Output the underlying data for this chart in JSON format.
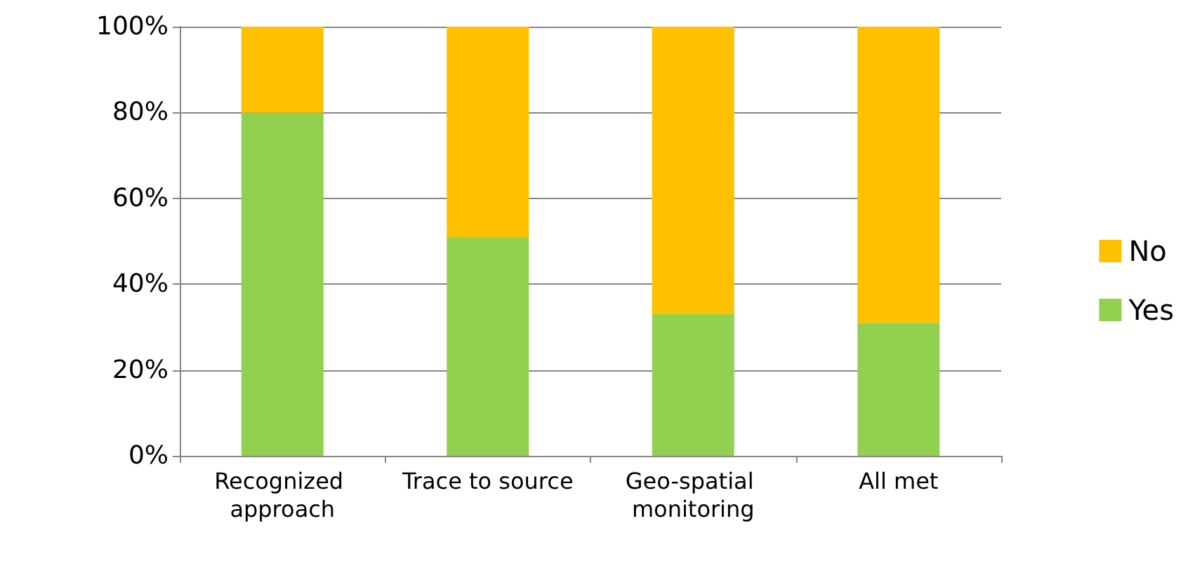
{
  "chart_data": {
    "type": "bar",
    "stacked": true,
    "categories": [
      "Recognized approach",
      "Trace to source",
      "Geo-spatial monitoring",
      "All met"
    ],
    "series": [
      {
        "name": "Yes",
        "color": "#92d050",
        "values": [
          80,
          51,
          33,
          31
        ]
      },
      {
        "name": "No",
        "color": "#ffc000",
        "values": [
          20,
          49,
          67,
          69
        ]
      }
    ],
    "ylim": [
      0,
      100
    ],
    "yticks": [
      {
        "value": 0,
        "label": "0%"
      },
      {
        "value": 20,
        "label": "20%"
      },
      {
        "value": 40,
        "label": "40%"
      },
      {
        "value": 60,
        "label": "60%"
      },
      {
        "value": 80,
        "label": "80%"
      },
      {
        "value": 100,
        "label": "100%"
      }
    ],
    "grid": "y",
    "legend": "right"
  }
}
